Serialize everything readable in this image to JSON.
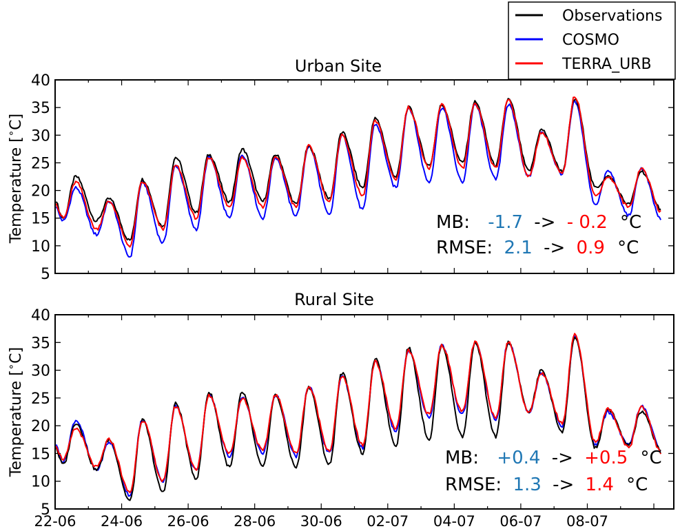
{
  "legend": {
    "items": [
      {
        "label": "Observations",
        "color": "#000000"
      },
      {
        "label": "COSMO",
        "color": "#0000ff"
      },
      {
        "label": "TERRA_URB",
        "color": "#ff0000"
      }
    ]
  },
  "chart_data": [
    {
      "type": "line",
      "title": "Urban Site",
      "xlabel": "",
      "ylabel": "Temperature [$^\\circ$C]",
      "ylim": [
        5,
        40
      ],
      "yticks": [
        5,
        10,
        15,
        20,
        25,
        30,
        35,
        40
      ],
      "xlim": [
        0,
        18.6
      ],
      "grid": false,
      "series": [
        {
          "name": "Observations",
          "color": "#000000",
          "maxima": [
            22.5,
            18.5,
            22,
            26,
            26.5,
            27.5,
            26.5,
            28,
            30.5,
            33,
            35,
            35.5,
            36,
            36.5,
            31,
            36.5,
            22.5,
            23.5
          ],
          "minima": [
            15,
            14.5,
            11,
            13.5,
            16,
            18,
            18,
            17.5,
            18.5,
            20.5,
            22.5,
            24.5,
            25,
            24.5,
            23.5,
            23.5,
            20.5,
            17.5
          ]
        },
        {
          "name": "COSMO",
          "color": "#0000ff",
          "maxima": [
            20.5,
            18,
            21.5,
            24.5,
            26,
            26.5,
            26,
            28,
            30,
            32,
            35,
            35,
            35.5,
            35.5,
            30.5,
            36,
            23.5,
            24
          ],
          "minima": [
            14.5,
            12,
            8,
            10.5,
            13,
            15,
            15,
            15.5,
            15.5,
            16.5,
            20.5,
            21.5,
            21.5,
            22,
            22.5,
            23,
            17.5,
            15.5
          ]
        },
        {
          "name": "TERRA_URB",
          "color": "#ff0000",
          "maxima": [
            21.5,
            18,
            21.5,
            24.5,
            26,
            26,
            26,
            28,
            30,
            32.5,
            35,
            35.5,
            35.5,
            36.5,
            30.5,
            37,
            22.5,
            24
          ],
          "minima": [
            15,
            13,
            10,
            13,
            15,
            17,
            17,
            17,
            18,
            19,
            22,
            24,
            24,
            24,
            22.5,
            23,
            19,
            17
          ]
        }
      ],
      "annotations": {
        "mb": {
          "label": "MB:",
          "from": "-1.7",
          "arrow": "->",
          "to": "- 0.2",
          "unit": "°C"
        },
        "rmse": {
          "label": "RMSE:",
          "from": "2.1",
          "arrow": "->",
          "to": "0.9",
          "unit": "°C"
        }
      }
    },
    {
      "type": "line",
      "title": "Rural Site",
      "xlabel": "",
      "ylabel": "Temperature [$^\\circ$C]",
      "ylim": [
        5,
        40
      ],
      "yticks": [
        5,
        10,
        15,
        20,
        25,
        30,
        35,
        40
      ],
      "xlim": [
        0,
        18.6
      ],
      "xticks": [
        "22-06",
        "24-06",
        "26-06",
        "28-06",
        "30-06",
        "02-07",
        "04-07",
        "06-07",
        "08-07"
      ],
      "grid": false,
      "series": [
        {
          "name": "Observations",
          "color": "#000000",
          "maxima": [
            20.5,
            17.5,
            21,
            24,
            26,
            26,
            25.5,
            27,
            29.5,
            32,
            34,
            34.5,
            35,
            35,
            30,
            36,
            23,
            22.5
          ],
          "minima": [
            13,
            12,
            6.5,
            8,
            10.5,
            12.5,
            12.5,
            12.5,
            13,
            15,
            16.5,
            17.5,
            18,
            18,
            22.5,
            19,
            16,
            16.5
          ]
        },
        {
          "name": "COSMO",
          "color": "#0000ff",
          "maxima": [
            21,
            17,
            21,
            23.5,
            25.5,
            25,
            25.5,
            27,
            29,
            31.5,
            33.5,
            34.5,
            35,
            35,
            29.5,
            36,
            22.5,
            23.5
          ],
          "minima": [
            13.5,
            12,
            7.5,
            10,
            12,
            14.5,
            15,
            14.5,
            15,
            16,
            19,
            21.5,
            22,
            21,
            22.5,
            20,
            16.5,
            16.5
          ]
        },
        {
          "name": "TERRA_URB",
          "color": "#ff0000",
          "maxima": [
            19.5,
            17.5,
            21,
            23.5,
            25.5,
            25,
            25.5,
            27,
            29,
            31.5,
            33.5,
            34.5,
            35,
            35,
            29.5,
            36.5,
            23,
            23.5
          ],
          "minima": [
            14,
            12.5,
            8,
            10,
            12,
            15,
            15.5,
            15,
            15.5,
            16.5,
            19.5,
            22,
            22.5,
            21.5,
            22.5,
            20.5,
            17,
            16
          ]
        }
      ],
      "annotations": {
        "mb": {
          "label": "MB:",
          "from": "+0.4",
          "arrow": "->",
          "to": "+0.5",
          "unit": "°C"
        },
        "rmse": {
          "label": "RMSE:",
          "from": "1.3",
          "arrow": "->",
          "to": "1.4",
          "unit": "°C"
        }
      }
    }
  ],
  "colors": {
    "blue_text": "#1f77b4",
    "red_text": "#ff0000",
    "black_text": "#000000"
  }
}
